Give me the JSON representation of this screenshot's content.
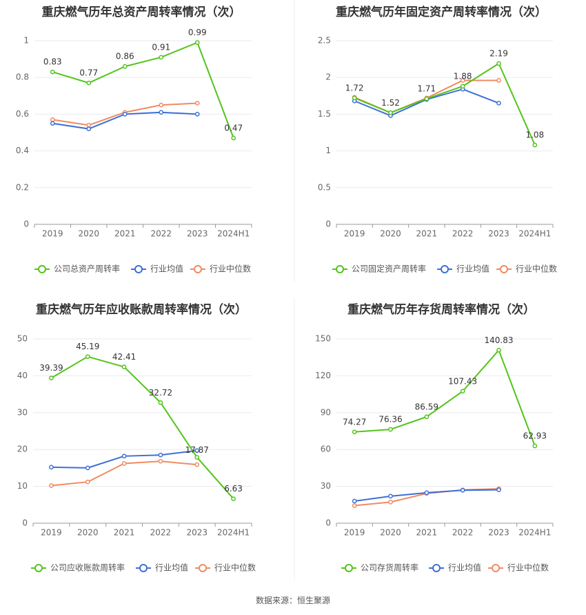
{
  "source_text": "数据来源：恒生聚源",
  "colors": {
    "company": "#52c41a",
    "average": "#3d6fd6",
    "median": "#f08a62",
    "grid": "#e8e8f2",
    "axis": "#999999",
    "tick": "#666666",
    "title": "#333333"
  },
  "chart_data": [
    {
      "type": "line",
      "title": "重庆燃气历年总资产周转率情况（次）",
      "categories": [
        "2019",
        "2020",
        "2021",
        "2022",
        "2023",
        "2024H1"
      ],
      "ylim": [
        0,
        1
      ],
      "yticks": [
        0,
        0.2,
        0.4,
        0.6,
        0.8,
        1
      ],
      "ytick_labels": [
        "0",
        "0.2",
        "0.4",
        "0.6",
        "0.8",
        "1"
      ],
      "series": [
        {
          "name": "公司总资产周转率",
          "key": "company",
          "values": [
            0.83,
            0.77,
            0.86,
            0.91,
            0.99,
            0.47
          ],
          "labels": [
            "0.83",
            "0.77",
            "0.86",
            "0.91",
            "0.99",
            "0.47"
          ]
        },
        {
          "name": "行业均值",
          "key": "average",
          "values": [
            0.55,
            0.52,
            0.6,
            0.61,
            0.6,
            null
          ]
        },
        {
          "name": "行业中位数",
          "key": "median",
          "values": [
            0.57,
            0.54,
            0.61,
            0.65,
            0.66,
            null
          ]
        }
      ]
    },
    {
      "type": "line",
      "title": "重庆燃气历年固定资产周转率情况（次）",
      "categories": [
        "2019",
        "2020",
        "2021",
        "2022",
        "2023",
        "2024H1"
      ],
      "ylim": [
        0,
        2.5
      ],
      "yticks": [
        0,
        0.5,
        1,
        1.5,
        2,
        2.5
      ],
      "ytick_labels": [
        "0",
        "0.5",
        "1",
        "1.5",
        "2",
        "2.5"
      ],
      "series": [
        {
          "name": "公司固定资产周转率",
          "key": "company",
          "values": [
            1.72,
            1.52,
            1.71,
            1.88,
            2.19,
            1.08
          ],
          "labels": [
            "1.72",
            "1.52",
            "1.71",
            "1.88",
            "2.19",
            "1.08"
          ]
        },
        {
          "name": "行业均值",
          "key": "average",
          "values": [
            1.68,
            1.48,
            1.7,
            1.84,
            1.65,
            null
          ]
        },
        {
          "name": "行业中位数",
          "key": "median",
          "values": [
            1.73,
            1.52,
            1.72,
            1.96,
            1.96,
            null
          ]
        }
      ]
    },
    {
      "type": "line",
      "title": "重庆燃气历年应收账款周转率情况（次）",
      "categories": [
        "2019",
        "2020",
        "2021",
        "2022",
        "2023",
        "2024H1"
      ],
      "ylim": [
        0,
        50
      ],
      "yticks": [
        0,
        10,
        20,
        30,
        40,
        50
      ],
      "ytick_labels": [
        "0",
        "10",
        "20",
        "30",
        "40",
        "50"
      ],
      "series": [
        {
          "name": "公司应收账款周转率",
          "key": "company",
          "values": [
            39.39,
            45.19,
            42.41,
            32.72,
            17.87,
            6.63
          ],
          "labels": [
            "39.39",
            "45.19",
            "42.41",
            "32.72",
            "17.87",
            "6.63"
          ]
        },
        {
          "name": "行业均值",
          "key": "average",
          "values": [
            15.2,
            15.0,
            18.2,
            18.5,
            19.7,
            null
          ]
        },
        {
          "name": "行业中位数",
          "key": "median",
          "values": [
            10.2,
            11.2,
            16.2,
            16.8,
            15.9,
            null
          ]
        }
      ]
    },
    {
      "type": "line",
      "title": "重庆燃气历年存货周转率情况（次）",
      "categories": [
        "2019",
        "2020",
        "2021",
        "2022",
        "2023",
        "2024H1"
      ],
      "ylim": [
        0,
        150
      ],
      "yticks": [
        0,
        30,
        60,
        90,
        120,
        150
      ],
      "ytick_labels": [
        "0",
        "30",
        "60",
        "90",
        "120",
        "150"
      ],
      "series": [
        {
          "name": "公司存货周转率",
          "key": "company",
          "values": [
            74.27,
            76.36,
            86.59,
            107.43,
            140.83,
            62.93
          ],
          "labels": [
            "74.27",
            "76.36",
            "86.59",
            "107.43",
            "140.83",
            "62.93"
          ]
        },
        {
          "name": "行业均值",
          "key": "average",
          "values": [
            18.0,
            22.0,
            24.8,
            26.8,
            27.2,
            null
          ]
        },
        {
          "name": "行业中位数",
          "key": "median",
          "values": [
            14.3,
            17.2,
            24.2,
            27.1,
            28.0,
            null
          ]
        }
      ]
    }
  ]
}
